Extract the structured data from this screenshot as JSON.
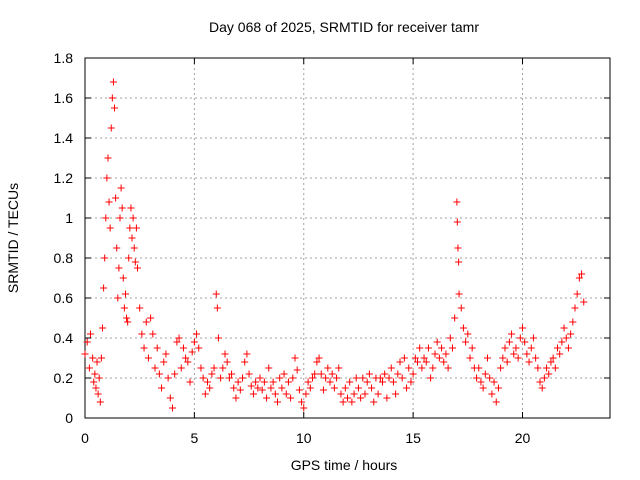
{
  "chart_data": {
    "type": "scatter",
    "title": "Day 068 of 2025, SRMTID for receiver tamr",
    "xlabel": "GPS time / hours",
    "ylabel": "SRMTID / TECUs",
    "xlim": [
      0,
      24
    ],
    "ylim": [
      0,
      1.8
    ],
    "xticks": [
      0,
      5,
      10,
      15,
      20
    ],
    "yticks": [
      0,
      0.2,
      0.4,
      0.6,
      0.8,
      1,
      1.2,
      1.4,
      1.6,
      1.8
    ],
    "x_tick_labels": [
      "0",
      "5",
      "10",
      "15",
      "20"
    ],
    "y_tick_labels": [
      "0",
      "0.2",
      "0.4",
      "0.6",
      "0.8",
      "1",
      "1.2",
      "1.4",
      "1.6",
      "1.8"
    ],
    "grid": true,
    "marker": "plus",
    "color": "#ff0000",
    "series": [
      {
        "name": "SRMTID",
        "points": [
          [
            0.0,
            0.32
          ],
          [
            0.1,
            0.38
          ],
          [
            0.2,
            0.25
          ],
          [
            0.25,
            0.42
          ],
          [
            0.35,
            0.3
          ],
          [
            0.4,
            0.18
          ],
          [
            0.45,
            0.22
          ],
          [
            0.5,
            0.15
          ],
          [
            0.55,
            0.28
          ],
          [
            0.6,
            0.12
          ],
          [
            0.65,
            0.2
          ],
          [
            0.7,
            0.08
          ],
          [
            0.75,
            0.3
          ],
          [
            0.8,
            0.45
          ],
          [
            0.85,
            0.65
          ],
          [
            0.9,
            0.8
          ],
          [
            0.95,
            1.0
          ],
          [
            1.0,
            1.2
          ],
          [
            1.05,
            1.3
          ],
          [
            1.1,
            1.08
          ],
          [
            1.15,
            0.95
          ],
          [
            1.2,
            1.45
          ],
          [
            1.25,
            1.6
          ],
          [
            1.3,
            1.68
          ],
          [
            1.35,
            1.55
          ],
          [
            1.4,
            1.1
          ],
          [
            1.45,
            0.85
          ],
          [
            1.5,
            0.6
          ],
          [
            1.55,
            0.75
          ],
          [
            1.6,
            1.0
          ],
          [
            1.65,
            1.15
          ],
          [
            1.7,
            1.05
          ],
          [
            1.75,
            0.7
          ],
          [
            1.8,
            0.55
          ],
          [
            1.85,
            0.62
          ],
          [
            1.9,
            0.5
          ],
          [
            1.95,
            0.48
          ],
          [
            2.0,
            0.8
          ],
          [
            2.05,
            0.95
          ],
          [
            2.1,
            1.05
          ],
          [
            2.15,
            0.9
          ],
          [
            2.2,
            1.0
          ],
          [
            2.25,
            0.85
          ],
          [
            2.3,
            0.78
          ],
          [
            2.35,
            0.95
          ],
          [
            2.4,
            0.75
          ],
          [
            2.5,
            0.55
          ],
          [
            2.6,
            0.42
          ],
          [
            2.7,
            0.35
          ],
          [
            2.8,
            0.48
          ],
          [
            2.9,
            0.3
          ],
          [
            3.0,
            0.5
          ],
          [
            3.1,
            0.42
          ],
          [
            3.2,
            0.25
          ],
          [
            3.3,
            0.35
          ],
          [
            3.4,
            0.22
          ],
          [
            3.5,
            0.15
          ],
          [
            3.6,
            0.28
          ],
          [
            3.7,
            0.32
          ],
          [
            3.8,
            0.2
          ],
          [
            3.9,
            0.1
          ],
          [
            4.0,
            0.05
          ],
          [
            4.1,
            0.22
          ],
          [
            4.2,
            0.38
          ],
          [
            4.3,
            0.4
          ],
          [
            4.4,
            0.25
          ],
          [
            4.5,
            0.35
          ],
          [
            4.6,
            0.3
          ],
          [
            4.7,
            0.28
          ],
          [
            4.8,
            0.18
          ],
          [
            4.9,
            0.33
          ],
          [
            5.0,
            0.38
          ],
          [
            5.1,
            0.42
          ],
          [
            5.2,
            0.35
          ],
          [
            5.3,
            0.25
          ],
          [
            5.4,
            0.2
          ],
          [
            5.5,
            0.12
          ],
          [
            5.6,
            0.18
          ],
          [
            5.7,
            0.15
          ],
          [
            5.8,
            0.22
          ],
          [
            5.9,
            0.25
          ],
          [
            6.0,
            0.62
          ],
          [
            6.05,
            0.55
          ],
          [
            6.1,
            0.4
          ],
          [
            6.2,
            0.2
          ],
          [
            6.3,
            0.25
          ],
          [
            6.4,
            0.32
          ],
          [
            6.5,
            0.28
          ],
          [
            6.6,
            0.2
          ],
          [
            6.7,
            0.22
          ],
          [
            6.8,
            0.15
          ],
          [
            6.9,
            0.1
          ],
          [
            7.0,
            0.18
          ],
          [
            7.1,
            0.14
          ],
          [
            7.2,
            0.2
          ],
          [
            7.3,
            0.28
          ],
          [
            7.4,
            0.32
          ],
          [
            7.5,
            0.22
          ],
          [
            7.6,
            0.16
          ],
          [
            7.7,
            0.12
          ],
          [
            7.8,
            0.18
          ],
          [
            7.9,
            0.15
          ],
          [
            8.0,
            0.2
          ],
          [
            8.1,
            0.14
          ],
          [
            8.2,
            0.18
          ],
          [
            8.3,
            0.1
          ],
          [
            8.4,
            0.25
          ],
          [
            8.5,
            0.15
          ],
          [
            8.6,
            0.18
          ],
          [
            8.7,
            0.12
          ],
          [
            8.8,
            0.08
          ],
          [
            8.9,
            0.2
          ],
          [
            9.0,
            0.15
          ],
          [
            9.1,
            0.22
          ],
          [
            9.2,
            0.12
          ],
          [
            9.3,
            0.18
          ],
          [
            9.4,
            0.1
          ],
          [
            9.5,
            0.2
          ],
          [
            9.6,
            0.3
          ],
          [
            9.7,
            0.24
          ],
          [
            9.8,
            0.14
          ],
          [
            9.9,
            0.08
          ],
          [
            10.0,
            0.05
          ],
          [
            10.1,
            0.12
          ],
          [
            10.2,
            0.18
          ],
          [
            10.3,
            0.15
          ],
          [
            10.4,
            0.2
          ],
          [
            10.5,
            0.22
          ],
          [
            10.6,
            0.28
          ],
          [
            10.7,
            0.3
          ],
          [
            10.8,
            0.22
          ],
          [
            10.9,
            0.14
          ],
          [
            11.0,
            0.2
          ],
          [
            11.1,
            0.25
          ],
          [
            11.2,
            0.18
          ],
          [
            11.3,
            0.22
          ],
          [
            11.4,
            0.15
          ],
          [
            11.5,
            0.2
          ],
          [
            11.6,
            0.25
          ],
          [
            11.7,
            0.12
          ],
          [
            11.8,
            0.08
          ],
          [
            11.9,
            0.15
          ],
          [
            12.0,
            0.1
          ],
          [
            12.1,
            0.18
          ],
          [
            12.2,
            0.08
          ],
          [
            12.3,
            0.12
          ],
          [
            12.4,
            0.2
          ],
          [
            12.5,
            0.15
          ],
          [
            12.6,
            0.1
          ],
          [
            12.7,
            0.2
          ],
          [
            12.8,
            0.12
          ],
          [
            12.9,
            0.18
          ],
          [
            13.0,
            0.22
          ],
          [
            13.1,
            0.15
          ],
          [
            13.2,
            0.08
          ],
          [
            13.3,
            0.2
          ],
          [
            13.4,
            0.12
          ],
          [
            13.5,
            0.2
          ],
          [
            13.6,
            0.18
          ],
          [
            13.7,
            0.22
          ],
          [
            13.8,
            0.1
          ],
          [
            13.9,
            0.2
          ],
          [
            14.0,
            0.25
          ],
          [
            14.1,
            0.18
          ],
          [
            14.2,
            0.12
          ],
          [
            14.3,
            0.22
          ],
          [
            14.4,
            0.28
          ],
          [
            14.5,
            0.2
          ],
          [
            14.6,
            0.3
          ],
          [
            14.7,
            0.15
          ],
          [
            14.8,
            0.25
          ],
          [
            14.9,
            0.18
          ],
          [
            15.0,
            0.22
          ],
          [
            15.1,
            0.3
          ],
          [
            15.2,
            0.28
          ],
          [
            15.3,
            0.35
          ],
          [
            15.4,
            0.25
          ],
          [
            15.5,
            0.3
          ],
          [
            15.6,
            0.28
          ],
          [
            15.7,
            0.35
          ],
          [
            15.8,
            0.2
          ],
          [
            15.9,
            0.25
          ],
          [
            16.0,
            0.32
          ],
          [
            16.1,
            0.38
          ],
          [
            16.2,
            0.3
          ],
          [
            16.3,
            0.35
          ],
          [
            16.4,
            0.28
          ],
          [
            16.5,
            0.32
          ],
          [
            16.6,
            0.25
          ],
          [
            16.7,
            0.4
          ],
          [
            16.8,
            0.35
          ],
          [
            16.9,
            0.5
          ],
          [
            17.0,
            1.08
          ],
          [
            17.02,
            0.98
          ],
          [
            17.05,
            0.85
          ],
          [
            17.08,
            0.78
          ],
          [
            17.1,
            0.62
          ],
          [
            17.2,
            0.55
          ],
          [
            17.3,
            0.45
          ],
          [
            17.4,
            0.38
          ],
          [
            17.5,
            0.42
          ],
          [
            17.6,
            0.3
          ],
          [
            17.7,
            0.35
          ],
          [
            17.8,
            0.25
          ],
          [
            17.9,
            0.2
          ],
          [
            18.0,
            0.25
          ],
          [
            18.1,
            0.18
          ],
          [
            18.2,
            0.15
          ],
          [
            18.3,
            0.22
          ],
          [
            18.4,
            0.3
          ],
          [
            18.5,
            0.2
          ],
          [
            18.6,
            0.12
          ],
          [
            18.7,
            0.18
          ],
          [
            18.8,
            0.08
          ],
          [
            18.9,
            0.15
          ],
          [
            19.0,
            0.25
          ],
          [
            19.1,
            0.3
          ],
          [
            19.2,
            0.35
          ],
          [
            19.3,
            0.28
          ],
          [
            19.4,
            0.38
          ],
          [
            19.5,
            0.42
          ],
          [
            19.6,
            0.32
          ],
          [
            19.7,
            0.35
          ],
          [
            19.8,
            0.3
          ],
          [
            19.9,
            0.4
          ],
          [
            20.0,
            0.45
          ],
          [
            20.1,
            0.38
          ],
          [
            20.2,
            0.32
          ],
          [
            20.3,
            0.28
          ],
          [
            20.4,
            0.35
          ],
          [
            20.5,
            0.4
          ],
          [
            20.6,
            0.3
          ],
          [
            20.7,
            0.25
          ],
          [
            20.8,
            0.18
          ],
          [
            20.9,
            0.15
          ],
          [
            21.0,
            0.2
          ],
          [
            21.1,
            0.25
          ],
          [
            21.2,
            0.22
          ],
          [
            21.3,
            0.28
          ],
          [
            21.4,
            0.3
          ],
          [
            21.5,
            0.25
          ],
          [
            21.6,
            0.35
          ],
          [
            21.7,
            0.32
          ],
          [
            21.8,
            0.38
          ],
          [
            21.9,
            0.45
          ],
          [
            22.0,
            0.4
          ],
          [
            22.1,
            0.35
          ],
          [
            22.2,
            0.42
          ],
          [
            22.3,
            0.48
          ],
          [
            22.4,
            0.55
          ],
          [
            22.5,
            0.62
          ],
          [
            22.6,
            0.7
          ],
          [
            22.7,
            0.72
          ],
          [
            22.8,
            0.58
          ]
        ]
      }
    ]
  }
}
